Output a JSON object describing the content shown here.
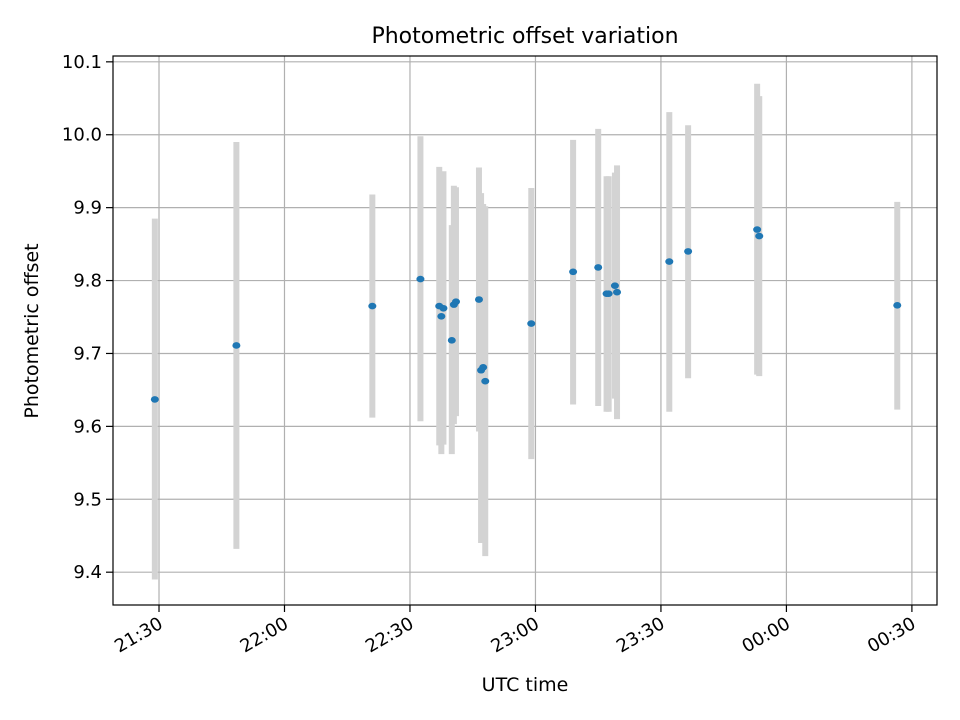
{
  "chart_data": {
    "type": "scatter",
    "title": "Photometric offset variation",
    "xlabel": "UTC time",
    "ylabel": "Photometric offset",
    "grid": true,
    "ylim": [
      9.355,
      10.108
    ],
    "xlim": [
      "21:19",
      "00:36"
    ],
    "x_ticks": [
      "21:30",
      "22:00",
      "22:30",
      "23:00",
      "23:30",
      "00:00",
      "00:30"
    ],
    "y_ticks": [
      "9.4",
      "9.5",
      "9.6",
      "9.7",
      "9.8",
      "9.9",
      "10.0",
      "10.1"
    ],
    "colors": {
      "points": "#1f77b4",
      "errorbars": "#d3d3d3",
      "grid": "#b0b0b0"
    },
    "points": [
      {
        "x": "21:29:00",
        "y": 9.637,
        "err_low": 9.39,
        "err_high": 9.885
      },
      {
        "x": "21:48:30",
        "y": 9.711,
        "err_low": 9.432,
        "err_high": 9.99
      },
      {
        "x": "22:21:00",
        "y": 9.765,
        "err_low": 9.612,
        "err_high": 9.918
      },
      {
        "x": "22:32:30",
        "y": 9.802,
        "err_low": 9.607,
        "err_high": 9.998
      },
      {
        "x": "22:37:00",
        "y": 9.765,
        "err_low": 9.574,
        "err_high": 9.956
      },
      {
        "x": "22:37:30",
        "y": 9.751,
        "err_low": 9.562,
        "err_high": 9.94
      },
      {
        "x": "22:38:00",
        "y": 9.762,
        "err_low": 9.575,
        "err_high": 9.95
      },
      {
        "x": "22:40:00",
        "y": 9.718,
        "err_low": 9.562,
        "err_high": 9.876
      },
      {
        "x": "22:40:30",
        "y": 9.767,
        "err_low": 9.603,
        "err_high": 9.93
      },
      {
        "x": "22:41:00",
        "y": 9.771,
        "err_low": 9.614,
        "err_high": 9.928
      },
      {
        "x": "22:46:30",
        "y": 9.774,
        "err_low": 9.593,
        "err_high": 9.955
      },
      {
        "x": "22:47:00",
        "y": 9.677,
        "err_low": 9.44,
        "err_high": 9.92
      },
      {
        "x": "22:47:30",
        "y": 9.681,
        "err_low": 9.455,
        "err_high": 9.905
      },
      {
        "x": "22:48:00",
        "y": 9.662,
        "err_low": 9.422,
        "err_high": 9.902
      },
      {
        "x": "22:59:00",
        "y": 9.741,
        "err_low": 9.555,
        "err_high": 9.927
      },
      {
        "x": "23:09:00",
        "y": 9.812,
        "err_low": 9.63,
        "err_high": 9.993
      },
      {
        "x": "23:15:00",
        "y": 9.818,
        "err_low": 9.628,
        "err_high": 10.008
      },
      {
        "x": "23:17:00",
        "y": 9.782,
        "err_low": 9.62,
        "err_high": 9.943
      },
      {
        "x": "23:17:30",
        "y": 9.782,
        "err_low": 9.62,
        "err_high": 9.943
      },
      {
        "x": "23:19:00",
        "y": 9.793,
        "err_low": 9.638,
        "err_high": 9.948
      },
      {
        "x": "23:19:30",
        "y": 9.784,
        "err_low": 9.61,
        "err_high": 9.958
      },
      {
        "x": "23:32:00",
        "y": 9.826,
        "err_low": 9.62,
        "err_high": 10.031
      },
      {
        "x": "23:36:30",
        "y": 9.84,
        "err_low": 9.666,
        "err_high": 10.013
      },
      {
        "x": "23:53:00",
        "y": 9.87,
        "err_low": 9.671,
        "err_high": 10.07
      },
      {
        "x": "23:53:30",
        "y": 9.861,
        "err_low": 9.669,
        "err_high": 10.053
      },
      {
        "x": "00:26:30",
        "y": 9.766,
        "err_low": 9.623,
        "err_high": 9.908
      }
    ]
  }
}
